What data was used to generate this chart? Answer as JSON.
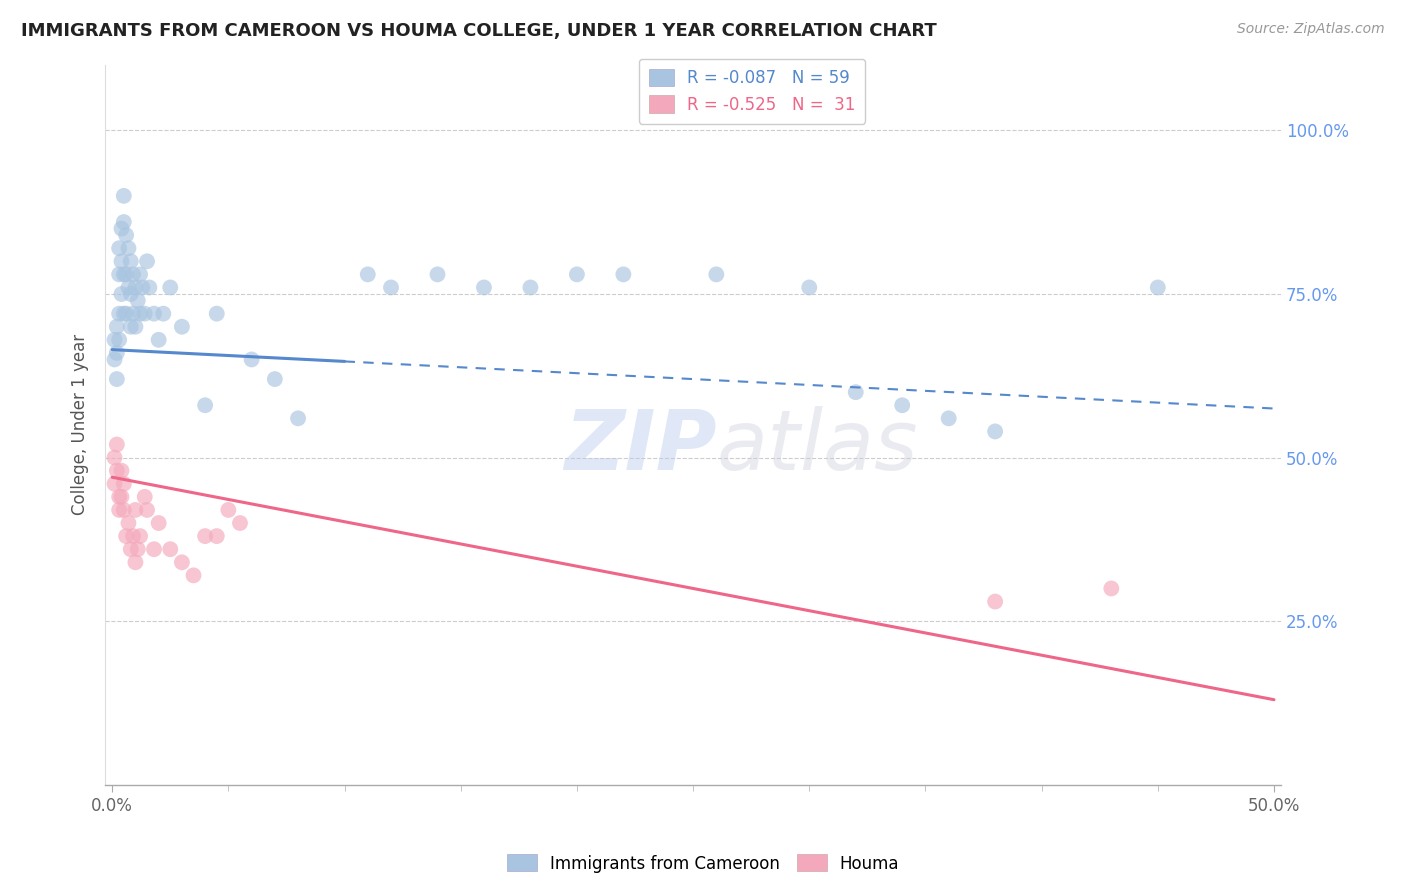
{
  "title": "IMMIGRANTS FROM CAMEROON VS HOUMA COLLEGE, UNDER 1 YEAR CORRELATION CHART",
  "source": "Source: ZipAtlas.com",
  "ylabel_label": "College, Under 1 year",
  "xlim": [
    0.0,
    0.5
  ],
  "ylim": [
    0.0,
    1.05
  ],
  "yticks": [
    0.25,
    0.5,
    0.75,
    1.0
  ],
  "ytick_labels": [
    "25.0%",
    "50.0%",
    "75.0%",
    "100.0%"
  ],
  "xtick_left_label": "0.0%",
  "xtick_right_label": "50.0%",
  "blue_color": "#A8C4E0",
  "pink_color": "#F4A8BB",
  "blue_line_color": "#5588CC",
  "pink_line_color": "#EE6688",
  "watermark_zip": "ZIP",
  "watermark_atlas": "atlas",
  "legend_blue_text": "R = -0.087   N = 59",
  "legend_pink_text": "R = -0.525   N =  31",
  "blue_scatter_x": [
    0.001,
    0.001,
    0.002,
    0.002,
    0.002,
    0.003,
    0.003,
    0.003,
    0.003,
    0.004,
    0.004,
    0.004,
    0.005,
    0.005,
    0.005,
    0.005,
    0.006,
    0.006,
    0.006,
    0.007,
    0.007,
    0.008,
    0.008,
    0.008,
    0.009,
    0.009,
    0.01,
    0.01,
    0.011,
    0.012,
    0.012,
    0.013,
    0.014,
    0.015,
    0.016,
    0.018,
    0.02,
    0.022,
    0.025,
    0.03,
    0.04,
    0.045,
    0.06,
    0.07,
    0.08,
    0.11,
    0.12,
    0.14,
    0.16,
    0.18,
    0.2,
    0.22,
    0.26,
    0.3,
    0.32,
    0.34,
    0.36,
    0.38,
    0.45
  ],
  "blue_scatter_y": [
    0.65,
    0.68,
    0.7,
    0.66,
    0.62,
    0.82,
    0.78,
    0.72,
    0.68,
    0.85,
    0.8,
    0.75,
    0.9,
    0.86,
    0.78,
    0.72,
    0.84,
    0.78,
    0.72,
    0.82,
    0.76,
    0.8,
    0.75,
    0.7,
    0.78,
    0.72,
    0.76,
    0.7,
    0.74,
    0.78,
    0.72,
    0.76,
    0.72,
    0.8,
    0.76,
    0.72,
    0.68,
    0.72,
    0.76,
    0.7,
    0.58,
    0.72,
    0.65,
    0.62,
    0.56,
    0.78,
    0.76,
    0.78,
    0.76,
    0.76,
    0.78,
    0.78,
    0.78,
    0.76,
    0.6,
    0.58,
    0.56,
    0.54,
    0.76
  ],
  "pink_scatter_x": [
    0.001,
    0.001,
    0.002,
    0.002,
    0.003,
    0.003,
    0.004,
    0.004,
    0.005,
    0.005,
    0.006,
    0.007,
    0.008,
    0.009,
    0.01,
    0.01,
    0.011,
    0.012,
    0.014,
    0.015,
    0.018,
    0.02,
    0.025,
    0.03,
    0.035,
    0.04,
    0.045,
    0.05,
    0.055,
    0.38,
    0.43
  ],
  "pink_scatter_y": [
    0.5,
    0.46,
    0.52,
    0.48,
    0.44,
    0.42,
    0.48,
    0.44,
    0.46,
    0.42,
    0.38,
    0.4,
    0.36,
    0.38,
    0.34,
    0.42,
    0.36,
    0.38,
    0.44,
    0.42,
    0.36,
    0.4,
    0.36,
    0.34,
    0.32,
    0.38,
    0.38,
    0.42,
    0.4,
    0.28,
    0.3
  ],
  "blue_line_x0": 0.0,
  "blue_line_x_solid_end": 0.1,
  "blue_line_x1": 0.5,
  "blue_line_y0": 0.665,
  "blue_line_y1": 0.575,
  "pink_line_x0": 0.0,
  "pink_line_x1": 0.5,
  "pink_line_y0": 0.47,
  "pink_line_y1": 0.13
}
